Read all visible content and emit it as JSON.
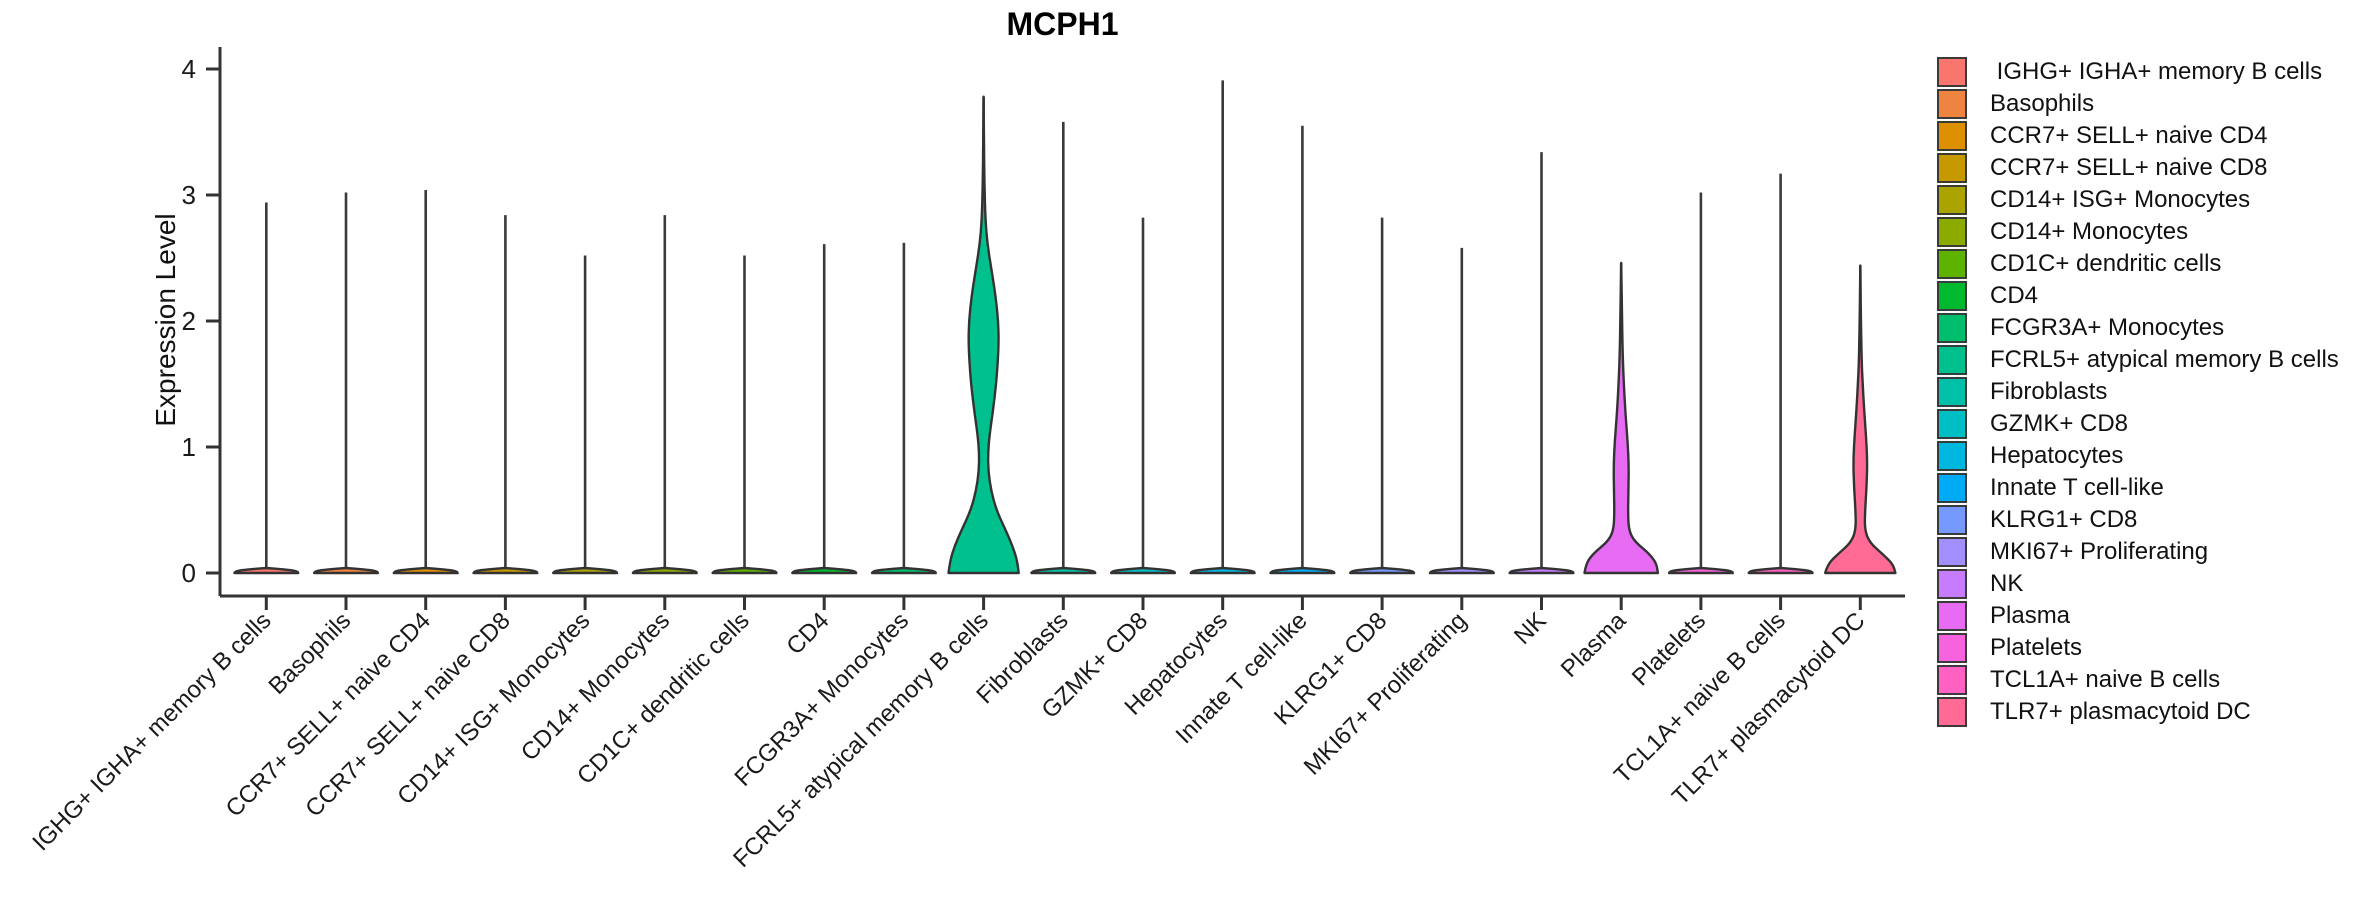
{
  "title": "MCPH1",
  "chart_data": {
    "type": "violin",
    "title": "MCPH1",
    "ylabel": "Expression Level",
    "xlabel": "",
    "ylim": [
      0,
      4.2
    ],
    "ytick_labels": [
      "0",
      "1",
      "2",
      "3",
      "4"
    ],
    "ytick_values": [
      0,
      1,
      2,
      3,
      4
    ],
    "grid": false,
    "legend_position": "right",
    "axis_color": "#333333",
    "spike_color": "#3a3a3a",
    "violin_outline_color": "#333333",
    "background_color": "#ffffff",
    "base_profile": [
      [
        0,
        0.4
      ],
      [
        0.012,
        0.39
      ],
      [
        0.025,
        0.3
      ],
      [
        0.04,
        0
      ]
    ],
    "categories": [
      {
        "label": "IGHG+ IGHA+ memory B cells",
        "legend_label": " IGHG+ IGHA+ memory B cells",
        "color": "#F8766D",
        "max_expr": 2.94
      },
      {
        "label": "Basophils",
        "color": "#EE8440",
        "max_expr": 3.02
      },
      {
        "label": "CCR7+ SELL+ naive CD4",
        "color": "#DC8F00",
        "max_expr": 3.04
      },
      {
        "label": "CCR7+ SELL+ naive CD8",
        "color": "#C69900",
        "max_expr": 2.84
      },
      {
        "label": "CD14+ ISG+ Monocytes",
        "color": "#ABA300",
        "max_expr": 2.52
      },
      {
        "label": "CD14+ Monocytes",
        "color": "#8CAB00",
        "max_expr": 2.84
      },
      {
        "label": "CD1C+ dendritic cells",
        "color": "#5EB300",
        "max_expr": 2.52
      },
      {
        "label": "CD4",
        "color": "#00B92E",
        "max_expr": 2.61
      },
      {
        "label": "FCGR3A+ Monocytes",
        "color": "#00BE6C",
        "max_expr": 2.62
      },
      {
        "label": "FCRL5+ atypical memory B cells",
        "color": "#00C08D",
        "max_expr": 3.78,
        "profile": [
          [
            0,
            0.44
          ],
          [
            0.1,
            0.42
          ],
          [
            0.22,
            0.36
          ],
          [
            0.35,
            0.27
          ],
          [
            0.5,
            0.16
          ],
          [
            0.65,
            0.095
          ],
          [
            0.8,
            0.06
          ],
          [
            0.95,
            0.055
          ],
          [
            1.1,
            0.075
          ],
          [
            1.3,
            0.12
          ],
          [
            1.55,
            0.165
          ],
          [
            1.8,
            0.19
          ],
          [
            2.0,
            0.185
          ],
          [
            2.2,
            0.15
          ],
          [
            2.4,
            0.1
          ],
          [
            2.6,
            0.05
          ],
          [
            2.8,
            0.022
          ],
          [
            3.1,
            0.01
          ],
          [
            3.4,
            0.006
          ],
          [
            3.78,
            0
          ]
        ]
      },
      {
        "label": "Fibroblasts",
        "color": "#00C1A7",
        "max_expr": 3.58
      },
      {
        "label": "GZMK+ CD8",
        "color": "#00BFC4",
        "max_expr": 2.82
      },
      {
        "label": "Hepatocytes",
        "color": "#00B7E0",
        "max_expr": 3.91
      },
      {
        "label": "Innate T cell-like",
        "color": "#00AAF4",
        "max_expr": 3.55
      },
      {
        "label": "KLRG1+ CD8",
        "color": "#7599FF",
        "max_expr": 2.82
      },
      {
        "label": "MKI67+ Proliferating",
        "color": "#A38FFF",
        "max_expr": 2.58
      },
      {
        "label": "NK",
        "color": "#C77CFF",
        "max_expr": 3.34
      },
      {
        "label": "Plasma",
        "color": "#E76BF3",
        "max_expr": 2.46,
        "profile": [
          [
            0,
            0.46
          ],
          [
            0.08,
            0.44
          ],
          [
            0.16,
            0.34
          ],
          [
            0.25,
            0.17
          ],
          [
            0.33,
            0.1
          ],
          [
            0.45,
            0.085
          ],
          [
            0.65,
            0.09
          ],
          [
            0.85,
            0.095
          ],
          [
            1.05,
            0.08
          ],
          [
            1.25,
            0.055
          ],
          [
            1.5,
            0.032
          ],
          [
            1.75,
            0.018
          ],
          [
            2.05,
            0.01
          ],
          [
            2.46,
            0
          ]
        ]
      },
      {
        "label": "Platelets",
        "color": "#F763DF",
        "max_expr": 3.02
      },
      {
        "label": "TCL1A+ naive B cells",
        "color": "#FF61C3",
        "max_expr": 3.17
      },
      {
        "label": "TLR7+ plasmacytoid DC",
        "color": "#FF6B94",
        "max_expr": 2.44,
        "profile": [
          [
            0,
            0.44
          ],
          [
            0.07,
            0.41
          ],
          [
            0.15,
            0.28
          ],
          [
            0.24,
            0.12
          ],
          [
            0.34,
            0.055
          ],
          [
            0.5,
            0.06
          ],
          [
            0.7,
            0.08
          ],
          [
            0.9,
            0.088
          ],
          [
            1.1,
            0.07
          ],
          [
            1.3,
            0.048
          ],
          [
            1.5,
            0.03
          ],
          [
            1.7,
            0.016
          ],
          [
            2.0,
            0.008
          ],
          [
            2.44,
            0
          ]
        ]
      }
    ]
  }
}
